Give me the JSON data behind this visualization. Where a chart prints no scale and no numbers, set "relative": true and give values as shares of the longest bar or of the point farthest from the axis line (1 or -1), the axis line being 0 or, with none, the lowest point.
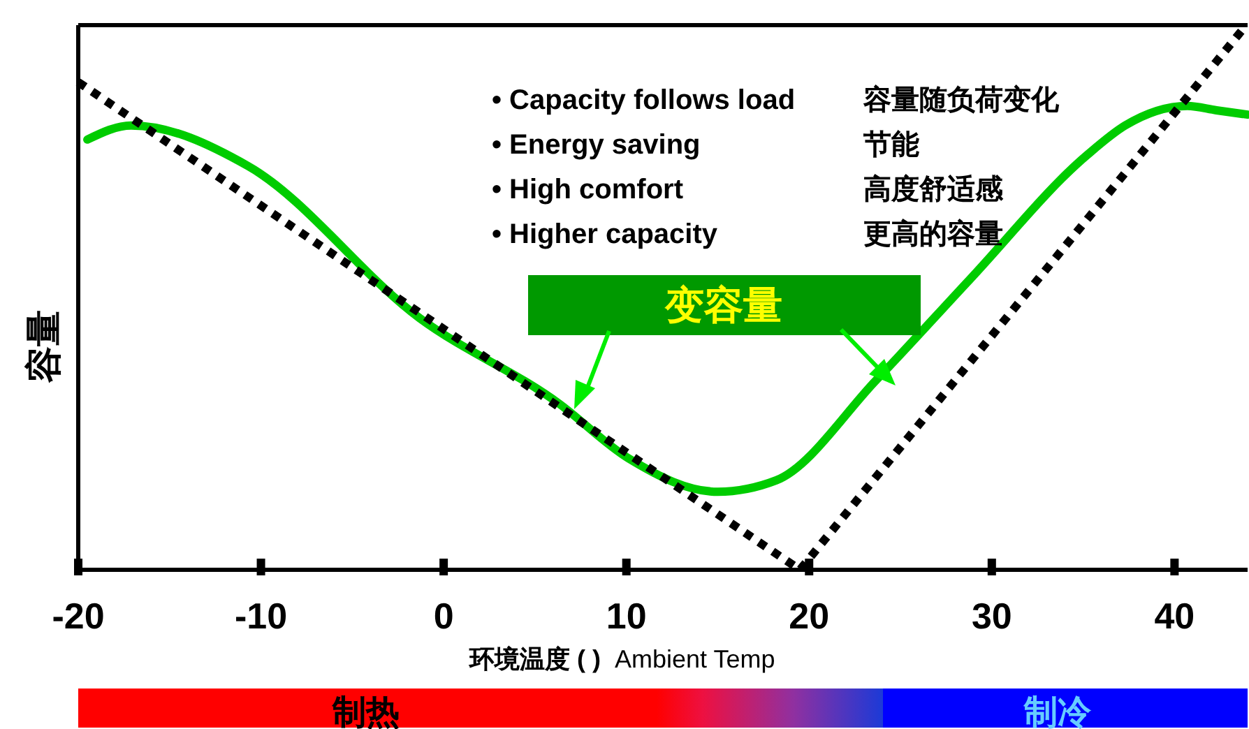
{
  "chart_data": {
    "type": "line",
    "relative": true,
    "xlabel": "环境温度 (  )",
    "ylabel": "容量",
    "xlim": [
      -20,
      44
    ],
    "xticks": [
      -20,
      -10,
      0,
      10,
      20,
      30,
      40
    ],
    "marker": "none",
    "series": [
      {
        "color": "#00cc00",
        "line_style": "solid",
        "x": [
          -19.5,
          -17.1,
          -10.7,
          -1.3,
          6.3,
          10.1,
          15.0,
          18.2,
          23.7,
          28.8,
          35.2,
          37.3,
          40.7,
          42.3,
          44
        ],
        "values": [
          0.794,
          0.82,
          0.745,
          0.464,
          0.307,
          0.206,
          0.144,
          0.165,
          0.351,
          0.536,
          0.765,
          0.82,
          0.856,
          0.848,
          0.84
        ]
      },
      {
        "color": "#000000",
        "line_style": "dotted",
        "x": [
          -20,
          19.5,
          43.8
        ],
        "values": [
          0.9,
          0,
          1
        ]
      }
    ],
    "annotations": [
      "• Capacity follows load",
      "• Energy saving",
      "• High comfort",
      "• Higher capacity",
      "容量随负荷变化",
      "节能",
      "高度舒适感",
      "更高的容量",
      "变容量",
      "Ambient Temp",
      "制热",
      "制冷"
    ]
  }
}
